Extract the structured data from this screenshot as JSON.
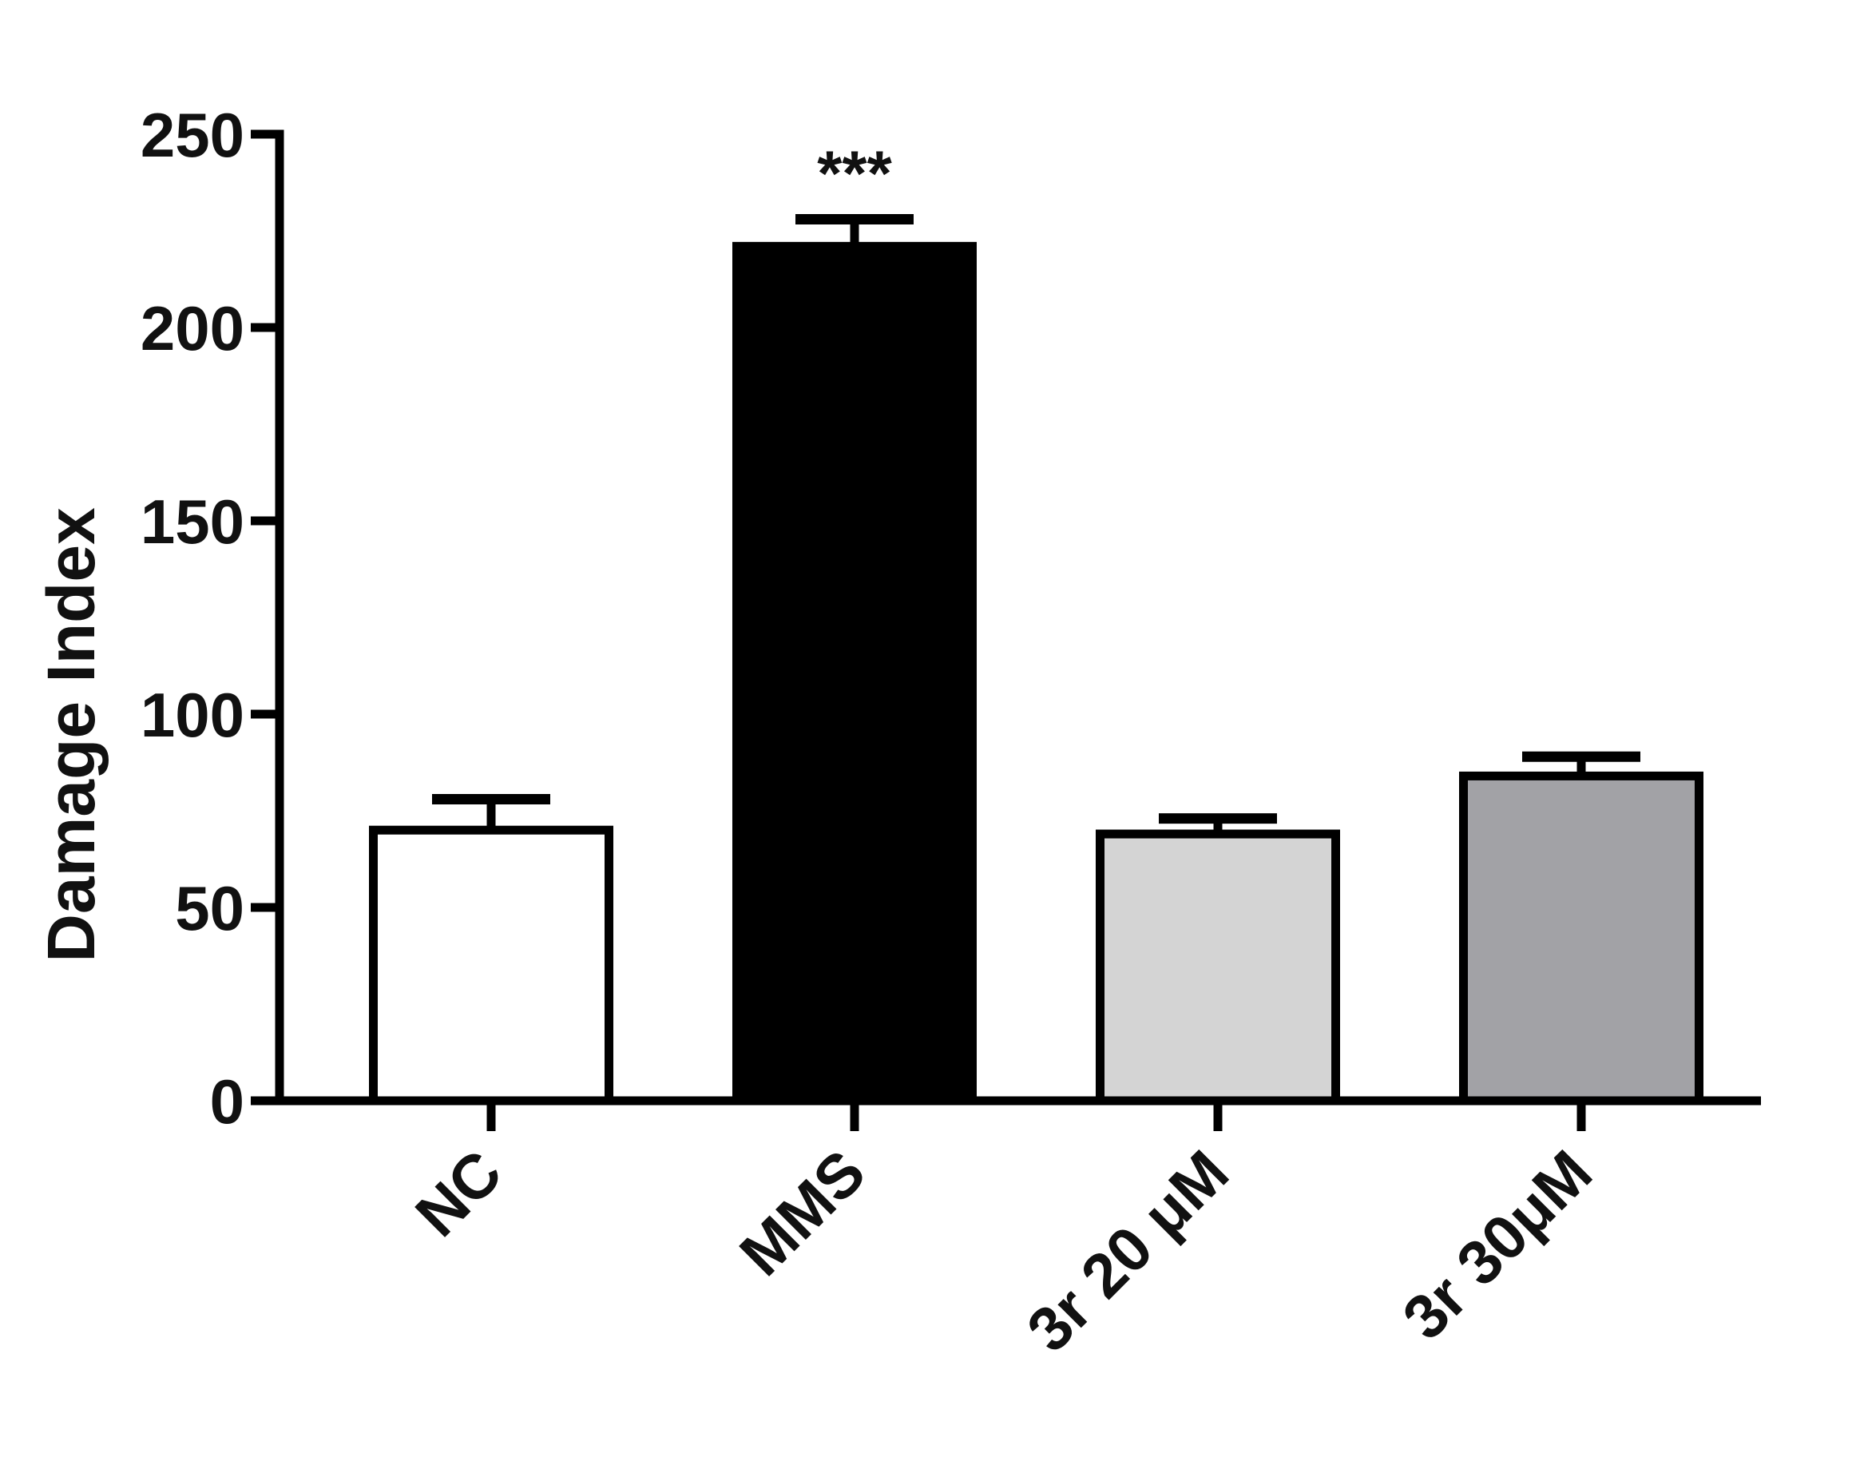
{
  "chart_data": {
    "type": "bar",
    "title": "",
    "xlabel": "",
    "ylabel": "Damage Index",
    "ylim": [
      0,
      250
    ],
    "yticks": [
      0,
      50,
      100,
      150,
      200,
      250
    ],
    "ytick_labels": [
      "0",
      "50",
      "100",
      "150",
      "200",
      "250"
    ],
    "categories": [
      "NC",
      "MMS",
      "3r 20 μM",
      "3r 30μM"
    ],
    "values": [
      70,
      221,
      69,
      84
    ],
    "errors": [
      8,
      7,
      4,
      5
    ],
    "colors": [
      "#ffffff",
      "#000000",
      "#d4d4d4",
      "#a2a2a6"
    ],
    "edge_color": "#000000",
    "annotations": [
      {
        "category": "MMS",
        "text": "***"
      }
    ],
    "grid": false,
    "legend": "none"
  }
}
